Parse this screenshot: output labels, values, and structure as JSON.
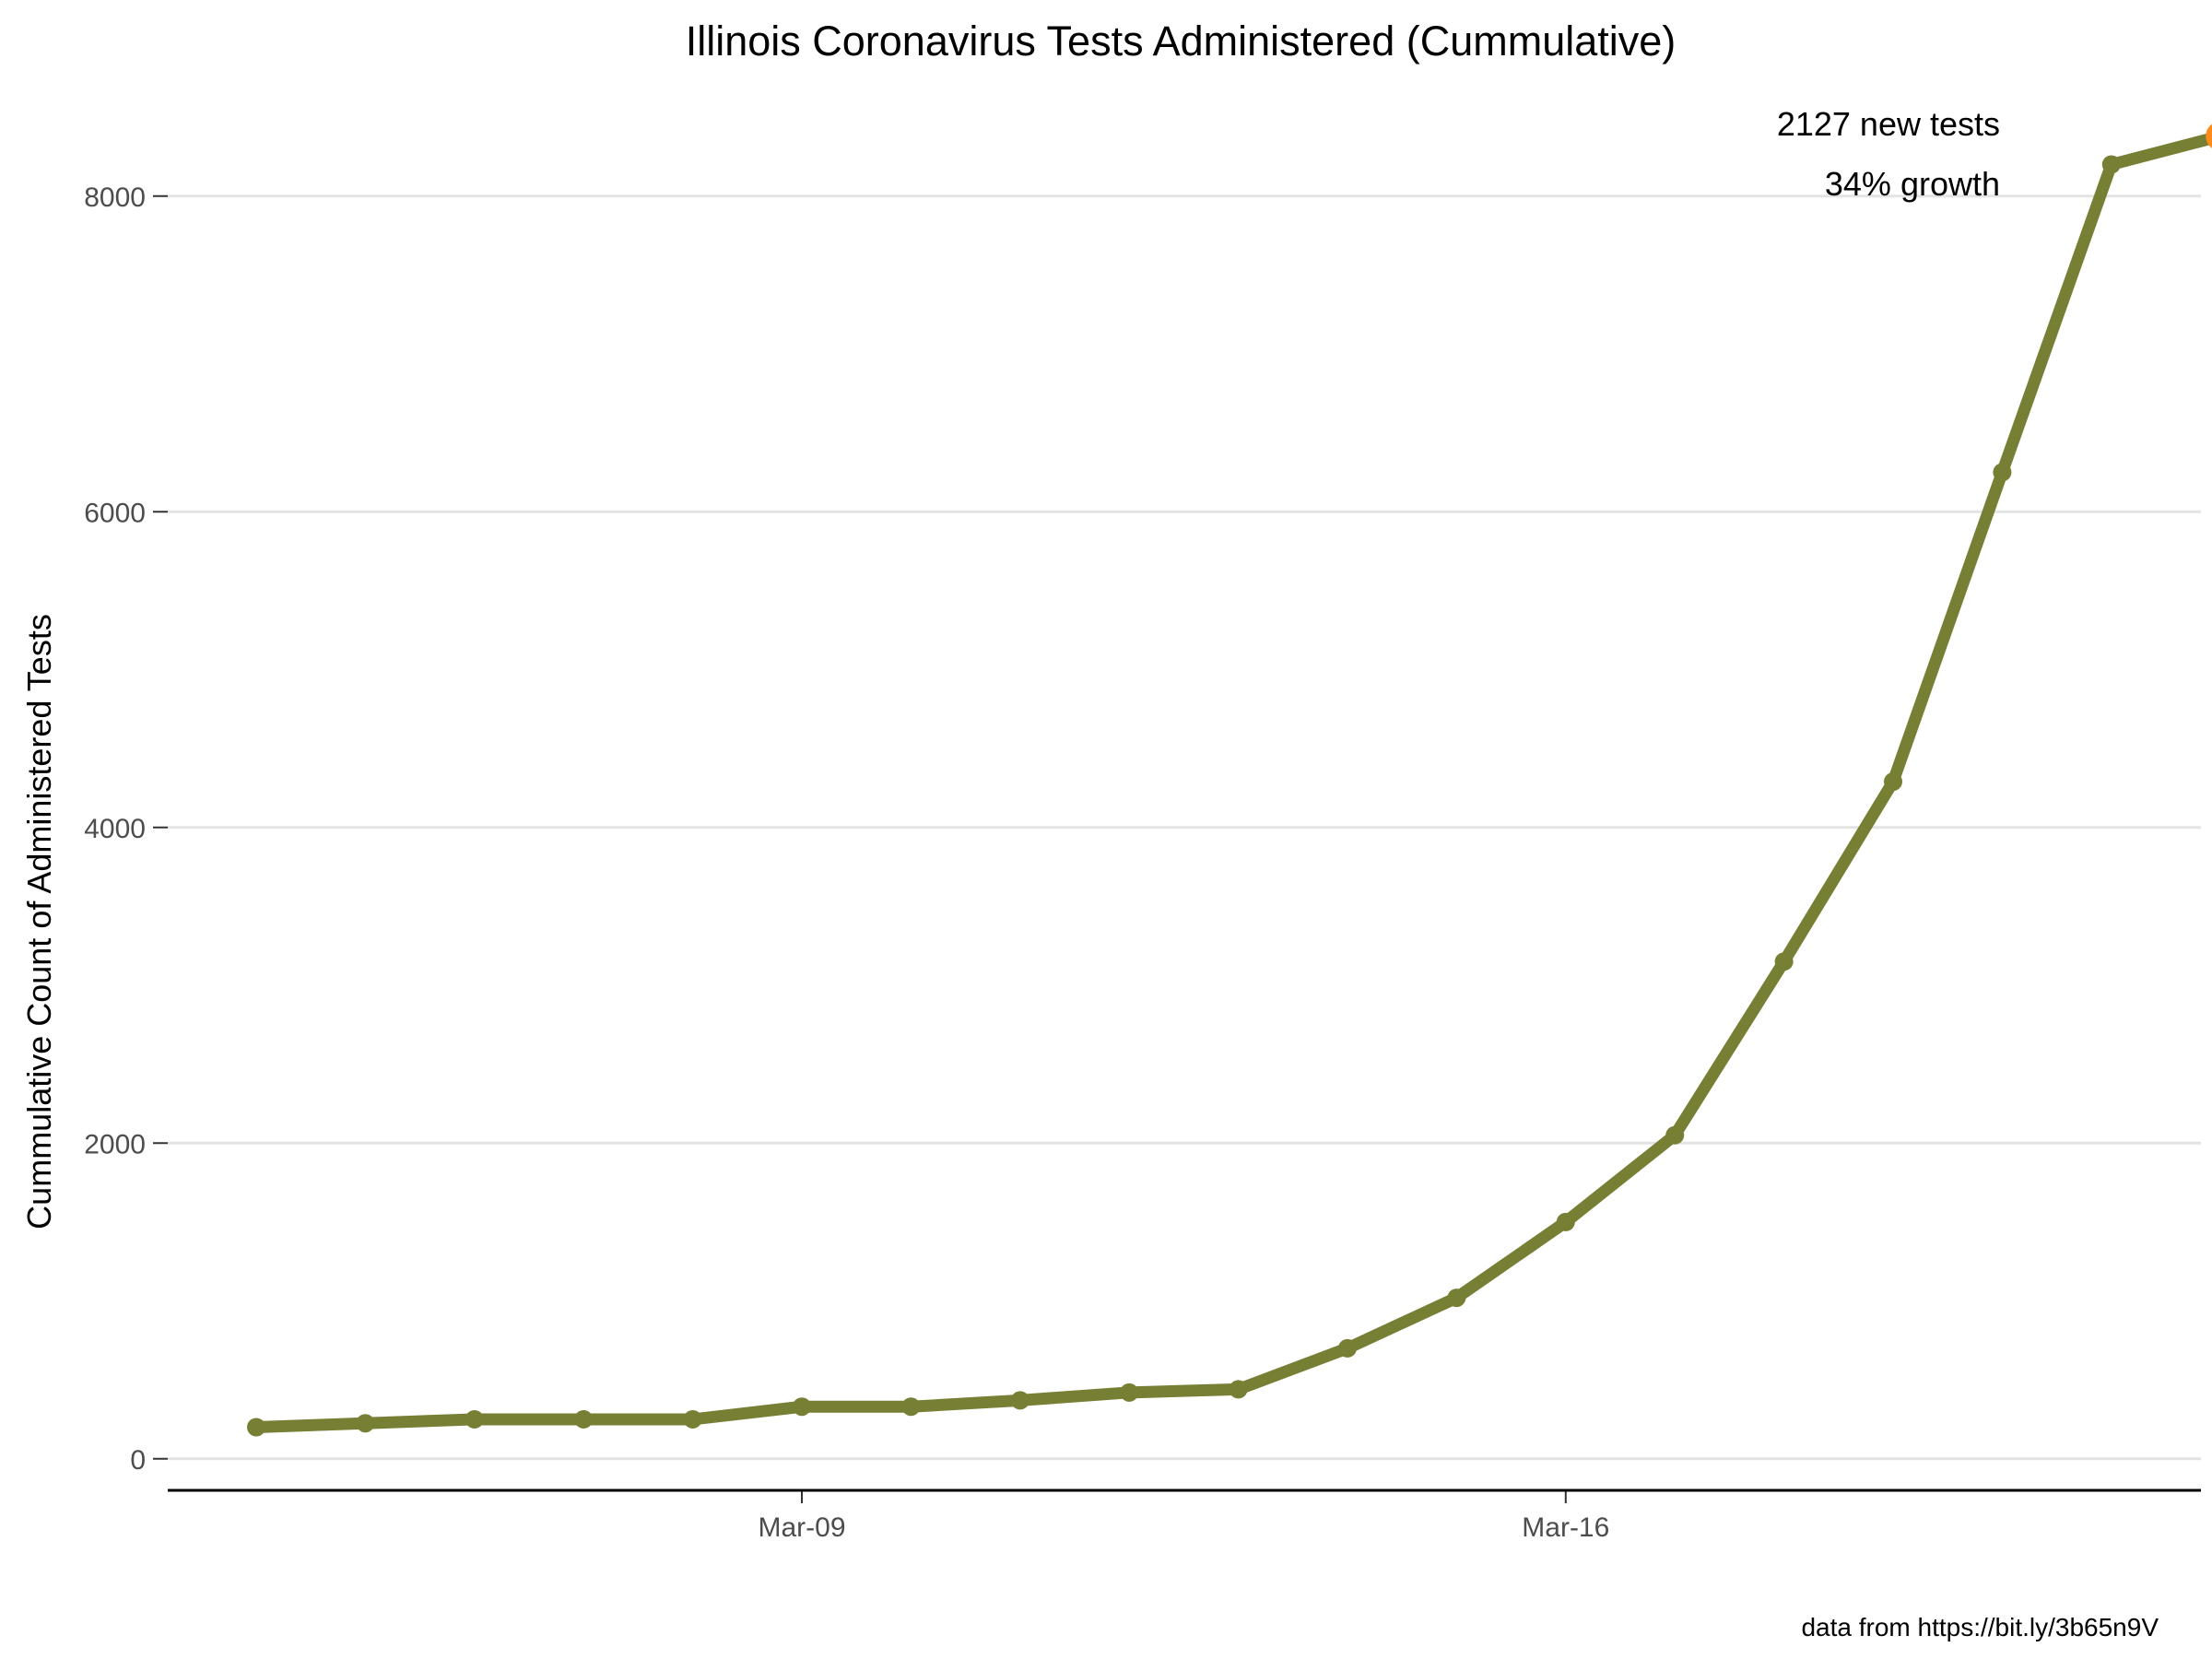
{
  "chart_data": {
    "type": "line",
    "title": "Illinois Coronavirus Tests Administered (Cummulative)",
    "xlabel": "",
    "ylabel": "Cummulative Count of Administered Tests",
    "x": [
      "Mar-04",
      "Mar-05",
      "Mar-06",
      "Mar-07",
      "Mar-08",
      "Mar-09",
      "Mar-10",
      "Mar-11",
      "Mar-12",
      "Mar-13",
      "Mar-14",
      "Mar-15",
      "Mar-16",
      "Mar-17",
      "Mar-18",
      "Mar-19",
      "Mar-20",
      "Mar-21",
      "Mar-22"
    ],
    "series": [
      {
        "name": "",
        "values": [
          200,
          225,
          250,
          250,
          250,
          330,
          330,
          370,
          420,
          440,
          700,
          1020,
          1500,
          2050,
          3150,
          4290,
          6250,
          8200,
          8380
        ]
      }
    ],
    "xticks": [
      "Mar-09",
      "Mar-16"
    ],
    "yticks": [
      0,
      2000,
      4000,
      6000,
      8000
    ],
    "ylim": [
      -200,
      8600
    ],
    "grid": "horizontal",
    "legend": "none",
    "line_color": "#767f33",
    "highlight_color": "#ff8c1a",
    "annotation": {
      "line1": "2127 new tests",
      "line2": "34% growth"
    },
    "caption": "data from https://bit.ly/3b65n9V"
  }
}
